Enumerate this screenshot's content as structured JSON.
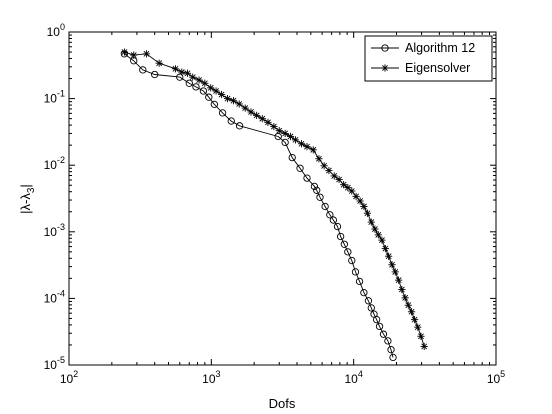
{
  "chart_data": {
    "type": "line",
    "title": "",
    "xlabel": "Dofs",
    "ylabel": "|λ-λ_3|",
    "ylabel_parts": {
      "pre": "|λ-λ",
      "sub": "3",
      "post": "|"
    },
    "x_scale": "log",
    "y_scale": "log",
    "xlim": [
      100,
      100000
    ],
    "ylim": [
      1e-05,
      1
    ],
    "grid": false,
    "legend_position": "top-right",
    "x_ticks": [
      {
        "value": 100,
        "base": "10",
        "exp": "2"
      },
      {
        "value": 1000,
        "base": "10",
        "exp": "3"
      },
      {
        "value": 10000,
        "base": "10",
        "exp": "4"
      },
      {
        "value": 100000,
        "base": "10",
        "exp": "5"
      }
    ],
    "y_ticks": [
      {
        "value": 1,
        "base": "10",
        "exp": "0"
      },
      {
        "value": 0.1,
        "base": "10",
        "exp": "-1"
      },
      {
        "value": 0.01,
        "base": "10",
        "exp": "-2"
      },
      {
        "value": 0.001,
        "base": "10",
        "exp": "-3"
      },
      {
        "value": 0.0001,
        "base": "10",
        "exp": "-4"
      },
      {
        "value": 1e-05,
        "base": "10",
        "exp": "-5"
      }
    ],
    "series": [
      {
        "name": "Algorithm 12",
        "marker": "circle",
        "color": "#000000",
        "x": [
          245,
          285,
          330,
          400,
          600,
          700,
          780,
          880,
          960,
          1050,
          1200,
          1380,
          1580,
          2950,
          3300,
          3700,
          4200,
          4700,
          5300,
          5500,
          5800,
          6300,
          6800,
          7200,
          7700,
          8100,
          8600,
          9100,
          9700,
          10300,
          11000,
          11800,
          12700,
          13300,
          13900,
          14500,
          15200,
          16200,
          17400,
          18300,
          18900
        ],
        "y": [
          0.47,
          0.37,
          0.27,
          0.23,
          0.21,
          0.17,
          0.15,
          0.13,
          0.105,
          0.082,
          0.061,
          0.046,
          0.039,
          0.027,
          0.022,
          0.013,
          0.009,
          0.0064,
          0.0048,
          0.0042,
          0.0033,
          0.0024,
          0.0018,
          0.0015,
          0.0012,
          0.00085,
          0.00065,
          0.0005,
          0.00037,
          0.00025,
          0.00018,
          0.000122,
          9.2e-05,
          7.2e-05,
          5.8e-05,
          4.8e-05,
          3.8e-05,
          2.9e-05,
          2.3e-05,
          1.7e-05,
          1.3e-05
        ]
      },
      {
        "name": "Eigensolver",
        "marker": "asterisk",
        "color": "#000000",
        "x": [
          245,
          285,
          350,
          430,
          560,
          620,
          680,
          740,
          820,
          900,
          990,
          1080,
          1180,
          1300,
          1430,
          1570,
          1730,
          1900,
          2080,
          2280,
          2500,
          2750,
          3000,
          3300,
          3600,
          3900,
          4300,
          4700,
          5200,
          5700,
          6200,
          6700,
          7300,
          7900,
          8500,
          9100,
          9700,
          10400,
          11100,
          11800,
          12500,
          13300,
          14100,
          14900,
          15800,
          16700,
          17600,
          18600,
          19600,
          20700,
          21800,
          23000,
          24200,
          25500,
          26800,
          28200,
          29700,
          31300
        ],
        "y": [
          0.5,
          0.45,
          0.47,
          0.34,
          0.28,
          0.25,
          0.24,
          0.21,
          0.19,
          0.17,
          0.145,
          0.13,
          0.115,
          0.1,
          0.093,
          0.083,
          0.072,
          0.063,
          0.056,
          0.05,
          0.044,
          0.038,
          0.033,
          0.03,
          0.027,
          0.024,
          0.021,
          0.019,
          0.017,
          0.0125,
          0.0098,
          0.0083,
          0.0069,
          0.0061,
          0.0051,
          0.0046,
          0.0041,
          0.0034,
          0.0029,
          0.0024,
          0.0019,
          0.0014,
          0.0011,
          0.0009,
          0.00075,
          0.00056,
          0.00043,
          0.00032,
          0.00025,
          0.000188,
          0.000136,
          0.000102,
          7.9e-05,
          6.3e-05,
          4.8e-05,
          3.7e-05,
          2.7e-05,
          1.9e-05
        ]
      }
    ]
  }
}
